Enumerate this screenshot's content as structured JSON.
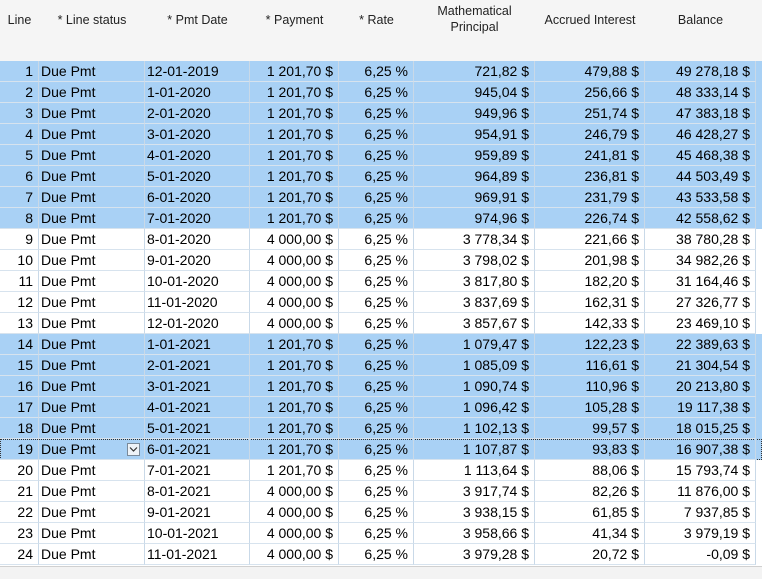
{
  "columns": {
    "line": "Line",
    "status": "* Line status",
    "date": "* Pmt Date",
    "payment": "* Payment",
    "rate": "* Rate",
    "principal": "Mathematical Principal",
    "interest": "Accrued Interest",
    "balance": "Balance"
  },
  "rows": [
    {
      "line": "1",
      "status": "Due Pmt",
      "date": "12-01-2019",
      "payment": "1 201,70 $",
      "rate": "6,25 %",
      "principal": "721,82 $",
      "interest": "479,88 $",
      "balance": "49 278,18 $",
      "selected": true
    },
    {
      "line": "2",
      "status": "Due Pmt",
      "date": "1-01-2020",
      "payment": "1 201,70 $",
      "rate": "6,25 %",
      "principal": "945,04 $",
      "interest": "256,66 $",
      "balance": "48 333,14 $",
      "selected": true
    },
    {
      "line": "3",
      "status": "Due Pmt",
      "date": "2-01-2020",
      "payment": "1 201,70 $",
      "rate": "6,25 %",
      "principal": "949,96 $",
      "interest": "251,74 $",
      "balance": "47 383,18 $",
      "selected": true
    },
    {
      "line": "4",
      "status": "Due Pmt",
      "date": "3-01-2020",
      "payment": "1 201,70 $",
      "rate": "6,25 %",
      "principal": "954,91 $",
      "interest": "246,79 $",
      "balance": "46 428,27 $",
      "selected": true
    },
    {
      "line": "5",
      "status": "Due Pmt",
      "date": "4-01-2020",
      "payment": "1 201,70 $",
      "rate": "6,25 %",
      "principal": "959,89 $",
      "interest": "241,81 $",
      "balance": "45 468,38 $",
      "selected": true
    },
    {
      "line": "6",
      "status": "Due Pmt",
      "date": "5-01-2020",
      "payment": "1 201,70 $",
      "rate": "6,25 %",
      "principal": "964,89 $",
      "interest": "236,81 $",
      "balance": "44 503,49 $",
      "selected": true
    },
    {
      "line": "7",
      "status": "Due Pmt",
      "date": "6-01-2020",
      "payment": "1 201,70 $",
      "rate": "6,25 %",
      "principal": "969,91 $",
      "interest": "231,79 $",
      "balance": "43 533,58 $",
      "selected": true
    },
    {
      "line": "8",
      "status": "Due Pmt",
      "date": "7-01-2020",
      "payment": "1 201,70 $",
      "rate": "6,25 %",
      "principal": "974,96 $",
      "interest": "226,74 $",
      "balance": "42 558,62 $",
      "selected": true
    },
    {
      "line": "9",
      "status": "Due Pmt",
      "date": "8-01-2020",
      "payment": "4 000,00 $",
      "rate": "6,25 %",
      "principal": "3 778,34 $",
      "interest": "221,66 $",
      "balance": "38 780,28 $",
      "selected": false
    },
    {
      "line": "10",
      "status": "Due Pmt",
      "date": "9-01-2020",
      "payment": "4 000,00 $",
      "rate": "6,25 %",
      "principal": "3 798,02 $",
      "interest": "201,98 $",
      "balance": "34 982,26 $",
      "selected": false
    },
    {
      "line": "11",
      "status": "Due Pmt",
      "date": "10-01-2020",
      "payment": "4 000,00 $",
      "rate": "6,25 %",
      "principal": "3 817,80 $",
      "interest": "182,20 $",
      "balance": "31 164,46 $",
      "selected": false
    },
    {
      "line": "12",
      "status": "Due Pmt",
      "date": "11-01-2020",
      "payment": "4 000,00 $",
      "rate": "6,25 %",
      "principal": "3 837,69 $",
      "interest": "162,31 $",
      "balance": "27 326,77 $",
      "selected": false
    },
    {
      "line": "13",
      "status": "Due Pmt",
      "date": "12-01-2020",
      "payment": "4 000,00 $",
      "rate": "6,25 %",
      "principal": "3 857,67 $",
      "interest": "142,33 $",
      "balance": "23 469,10 $",
      "selected": false
    },
    {
      "line": "14",
      "status": "Due Pmt",
      "date": "1-01-2021",
      "payment": "1 201,70 $",
      "rate": "6,25 %",
      "principal": "1 079,47 $",
      "interest": "122,23 $",
      "balance": "22 389,63 $",
      "selected": true
    },
    {
      "line": "15",
      "status": "Due Pmt",
      "date": "2-01-2021",
      "payment": "1 201,70 $",
      "rate": "6,25 %",
      "principal": "1 085,09 $",
      "interest": "116,61 $",
      "balance": "21 304,54 $",
      "selected": true
    },
    {
      "line": "16",
      "status": "Due Pmt",
      "date": "3-01-2021",
      "payment": "1 201,70 $",
      "rate": "6,25 %",
      "principal": "1 090,74 $",
      "interest": "110,96 $",
      "balance": "20 213,80 $",
      "selected": true
    },
    {
      "line": "17",
      "status": "Due Pmt",
      "date": "4-01-2021",
      "payment": "1 201,70 $",
      "rate": "6,25 %",
      "principal": "1 096,42 $",
      "interest": "105,28 $",
      "balance": "19 117,38 $",
      "selected": true
    },
    {
      "line": "18",
      "status": "Due Pmt",
      "date": "5-01-2021",
      "payment": "1 201,70 $",
      "rate": "6,25 %",
      "principal": "1 102,13 $",
      "interest": "99,57 $",
      "balance": "18 015,25 $",
      "selected": true
    },
    {
      "line": "19",
      "status": "Due Pmt",
      "date": "6-01-2021",
      "payment": "1 201,70 $",
      "rate": "6,25 %",
      "principal": "1 107,87 $",
      "interest": "93,83 $",
      "balance": "16 907,38 $",
      "selected": true,
      "current": true
    },
    {
      "line": "20",
      "status": "Due Pmt",
      "date": "7-01-2021",
      "payment": "1 201,70 $",
      "rate": "6,25 %",
      "principal": "1 113,64 $",
      "interest": "88,06 $",
      "balance": "15 793,74 $",
      "selected": false
    },
    {
      "line": "21",
      "status": "Due Pmt",
      "date": "8-01-2021",
      "payment": "4 000,00 $",
      "rate": "6,25 %",
      "principal": "3 917,74 $",
      "interest": "82,26 $",
      "balance": "11 876,00 $",
      "selected": false
    },
    {
      "line": "22",
      "status": "Due Pmt",
      "date": "9-01-2021",
      "payment": "4 000,00 $",
      "rate": "6,25 %",
      "principal": "3 938,15 $",
      "interest": "61,85 $",
      "balance": "7 937,85 $",
      "selected": false
    },
    {
      "line": "23",
      "status": "Due Pmt",
      "date": "10-01-2021",
      "payment": "4 000,00 $",
      "rate": "6,25 %",
      "principal": "3 958,66 $",
      "interest": "41,34 $",
      "balance": "3 979,19 $",
      "selected": false
    },
    {
      "line": "24",
      "status": "Due Pmt",
      "date": "11-01-2021",
      "payment": "4 000,00 $",
      "rate": "6,25 %",
      "principal": "3 979,28 $",
      "interest": "20,72 $",
      "balance": "-0,09 $",
      "selected": false
    }
  ],
  "colors": {
    "selected_row": "#a9d1f5",
    "header_bg": "#f5f5f5",
    "grid_line": "#c9d9e8"
  },
  "icons": {
    "status_dropdown": "chevron-down-icon"
  }
}
